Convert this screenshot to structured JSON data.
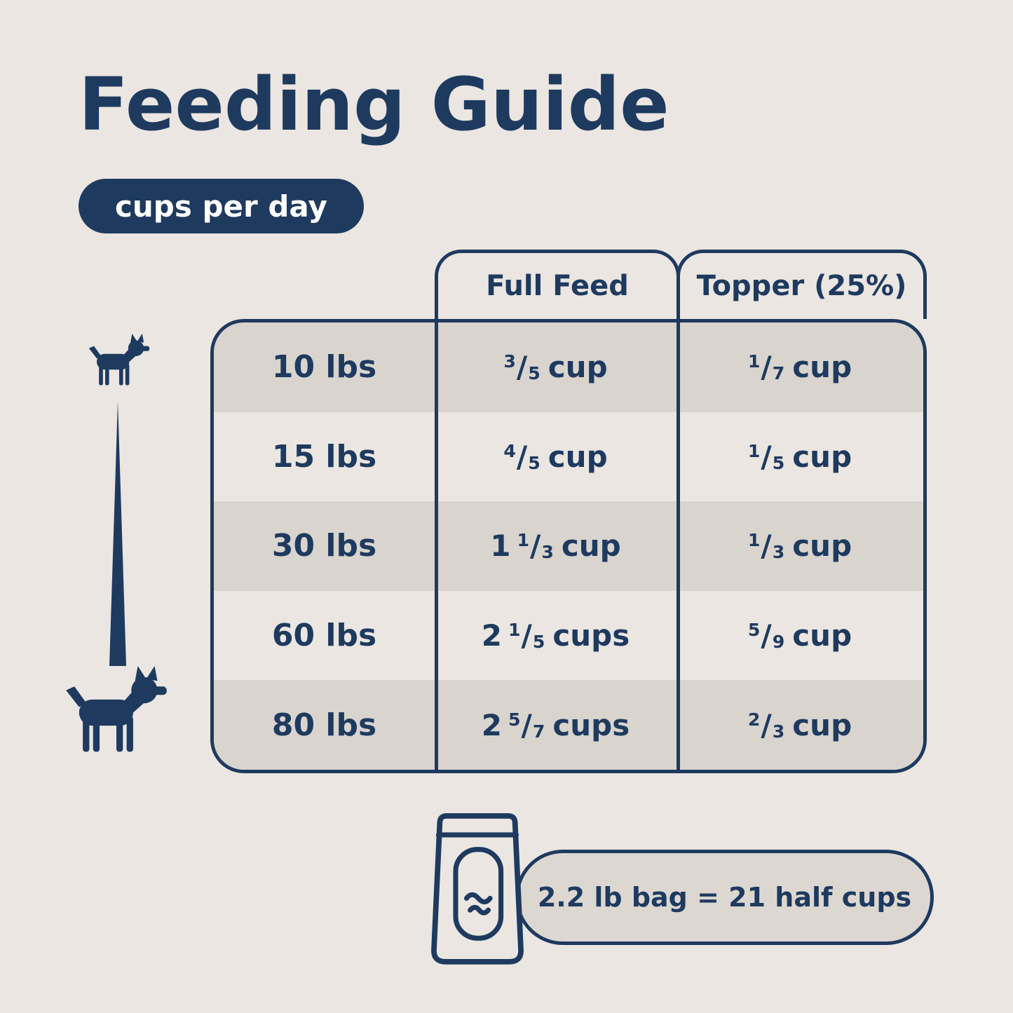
{
  "title": "Feeding Guide",
  "badge": "cups per day",
  "chart_data": {
    "type": "table",
    "title": "Feeding Guide",
    "subtitle": "cups per day",
    "columns": [
      "",
      "Full Feed",
      "Topper (25%)"
    ],
    "rows": [
      {
        "weight": "10 lbs",
        "full_feed": {
          "whole": "",
          "num": "3",
          "den": "5",
          "unit": "cup"
        },
        "topper": {
          "whole": "",
          "num": "1",
          "den": "7",
          "unit": "cup"
        }
      },
      {
        "weight": "15 lbs",
        "full_feed": {
          "whole": "",
          "num": "4",
          "den": "5",
          "unit": "cup"
        },
        "topper": {
          "whole": "",
          "num": "1",
          "den": "5",
          "unit": "cup"
        }
      },
      {
        "weight": "30 lbs",
        "full_feed": {
          "whole": "1",
          "num": "1",
          "den": "3",
          "unit": "cup"
        },
        "topper": {
          "whole": "",
          "num": "1",
          "den": "3",
          "unit": "cup"
        }
      },
      {
        "weight": "60 lbs",
        "full_feed": {
          "whole": "2",
          "num": "1",
          "den": "5",
          "unit": "cups"
        },
        "topper": {
          "whole": "",
          "num": "5",
          "den": "9",
          "unit": "cup"
        }
      },
      {
        "weight": "80 lbs",
        "full_feed": {
          "whole": "2",
          "num": "5",
          "den": "7",
          "unit": "cups"
        },
        "topper": {
          "whole": "",
          "num": "2",
          "den": "3",
          "unit": "cup"
        }
      }
    ],
    "footnote": "2.2 lb bag = 21 half cups",
    "grid": false,
    "legend_position": "none"
  },
  "icons": {
    "small_dog": "small-dog-icon",
    "large_dog": "large-dog-icon",
    "bag": "dog-food-bag-icon",
    "size_line": "size-range-spike"
  },
  "colors": {
    "navy": "#1e3a5f",
    "background": "#ebe6e1",
    "row_shade": "#d9d4ce",
    "note_fill": "#dcd7d1",
    "badge_text": "#ffffff"
  }
}
